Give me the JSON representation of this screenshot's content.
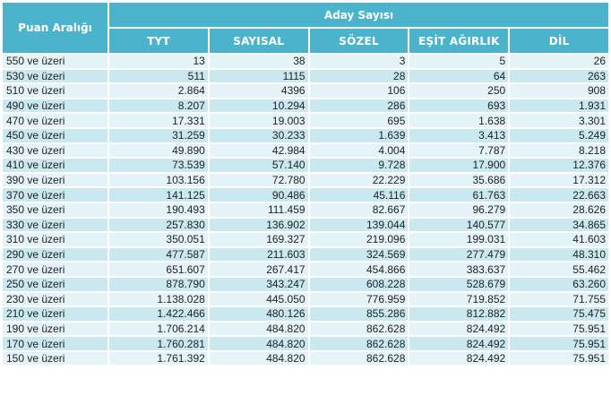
{
  "table": {
    "range_header": "Puan Aralığı",
    "group_header": "Aday Sayısı",
    "columns": [
      "TYT",
      "SAYISAL",
      "SÖZEL",
      "EŞİT AĞIRLIK",
      "DİL"
    ],
    "rows": [
      [
        "550 ve üzeri",
        "13",
        "38",
        "3",
        "5",
        "26"
      ],
      [
        "530 ve üzeri",
        "511",
        "1115",
        "28",
        "64",
        "263"
      ],
      [
        "510 ve üzeri",
        "2.864",
        "4396",
        "106",
        "250",
        "908"
      ],
      [
        "490 ve üzeri",
        "8.207",
        "10.294",
        "286",
        "693",
        "1.931"
      ],
      [
        "470 ve üzeri",
        "17.331",
        "19.003",
        "695",
        "1.638",
        "3.301"
      ],
      [
        "450 ve üzeri",
        "31.259",
        "30.233",
        "1.639",
        "3.413",
        "5.249"
      ],
      [
        "430 ve üzeri",
        "49.890",
        "42.984",
        "4.004",
        "7.787",
        "8.218"
      ],
      [
        "410 ve üzeri",
        "73.539",
        "57.140",
        "9.728",
        "17.900",
        "12.376"
      ],
      [
        "390 ve üzeri",
        "103.156",
        "72.780",
        "22.229",
        "35.686",
        "17.312"
      ],
      [
        "370 ve üzeri",
        "141.125",
        "90.486",
        "45.116",
        "61.763",
        "22.663"
      ],
      [
        "350 ve üzeri",
        "190.493",
        "111.459",
        "82.667",
        "96.279",
        "28.626"
      ],
      [
        "330 ve üzeri",
        "257.830",
        "136.902",
        "139.044",
        "140.577",
        "34.865"
      ],
      [
        "310 ve üzeri",
        "350.051",
        "169.327",
        "219.096",
        "199.031",
        "41.603"
      ],
      [
        "290 ve üzeri",
        "477.587",
        "211.603",
        "324.569",
        "277.479",
        "48.310"
      ],
      [
        "270 ve üzeri",
        "651.607",
        "267.417",
        "454.866",
        "383.637",
        "55.462"
      ],
      [
        "250 ve üzeri",
        "878.790",
        "343.247",
        "608.228",
        "528.679",
        "63.260"
      ],
      [
        "230 ve üzeri",
        "1.138.028",
        "445.050",
        "776.959",
        "719.852",
        "71.755"
      ],
      [
        "210 ve üzeri",
        "1.422.466",
        "480.126",
        "855.286",
        "812.882",
        "75.475"
      ],
      [
        "190 ve üzeri",
        "1.706.214",
        "484.820",
        "862.628",
        "824.492",
        "75.951"
      ],
      [
        "170 ve üzeri",
        "1.760.281",
        "484.820",
        "862.628",
        "824.492",
        "75.951"
      ],
      [
        "150 ve üzeri",
        "1.761.392",
        "484.820",
        "862.628",
        "824.492",
        "75.951"
      ]
    ]
  },
  "colors": {
    "header_bg": "#4bb3cb",
    "row_light": "#e4f3f7",
    "row_dark": "#c9e8ef"
  }
}
